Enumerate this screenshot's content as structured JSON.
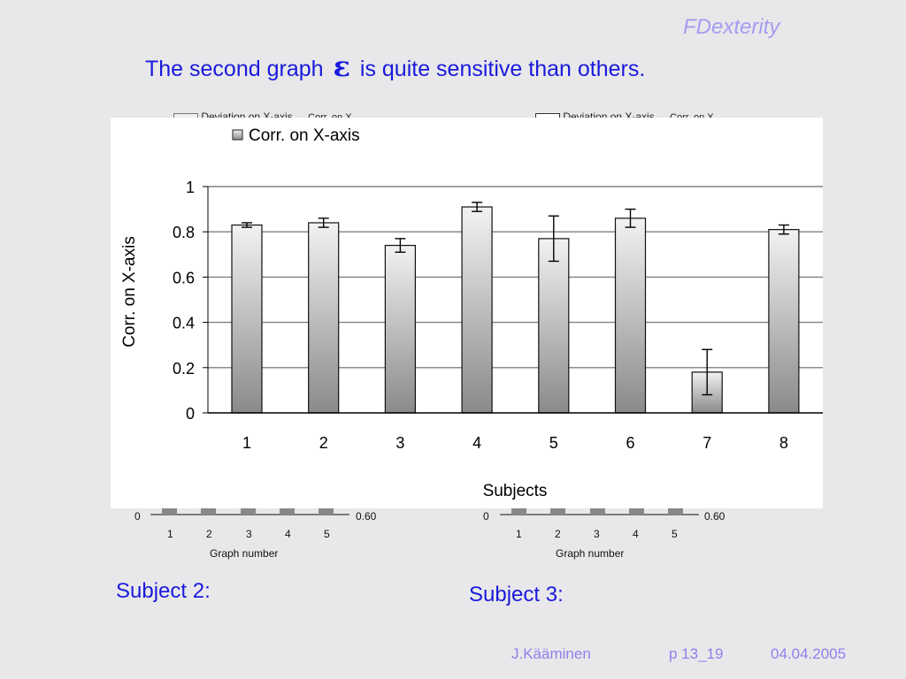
{
  "header": {
    "brand": "FDexterity",
    "title_before": "The second graph",
    "title_symbol": "ε",
    "title_after": "is quite sensitive than others."
  },
  "background_charts": [
    {
      "legend": [
        "Deviation on X-axis",
        "Corr. on X"
      ],
      "x_ticks": [
        "1",
        "2",
        "3",
        "4",
        "5"
      ],
      "xlabel": "Graph number",
      "y_left_min": "0",
      "y_right_min": "0.60",
      "caption": "Subject 2:"
    },
    {
      "legend": [
        "Deviation on X-axis",
        "Corr. on X"
      ],
      "x_ticks": [
        "1",
        "2",
        "3",
        "4",
        "5"
      ],
      "xlabel": "Graph number",
      "y_left_min": "0",
      "y_right_min": "0.60",
      "caption": "Subject 3:"
    }
  ],
  "chart_data": {
    "type": "bar",
    "categories": [
      "1",
      "2",
      "3",
      "4",
      "5",
      "6",
      "7",
      "8"
    ],
    "series": [
      {
        "name": "Corr. on X-axis",
        "values": [
          0.83,
          0.84,
          0.74,
          0.91,
          0.77,
          0.86,
          0.18,
          0.81
        ],
        "errors": [
          0.01,
          0.02,
          0.03,
          0.02,
          0.1,
          0.04,
          0.1,
          0.02
        ]
      }
    ],
    "xlabel": "Subjects",
    "ylabel": "Corr. on X-axis",
    "ylim": [
      0,
      1
    ],
    "yticks": [
      "0",
      "0.2",
      "0.4",
      "0.6",
      "0.8",
      "1"
    ],
    "grid": true,
    "legend_position": "top-left",
    "bar_fill": [
      "#f2f2f2",
      "#8a8a8a"
    ]
  },
  "footer": {
    "author": "J.Kääminen",
    "page": "p 13_19",
    "date": "04.04.2005"
  }
}
